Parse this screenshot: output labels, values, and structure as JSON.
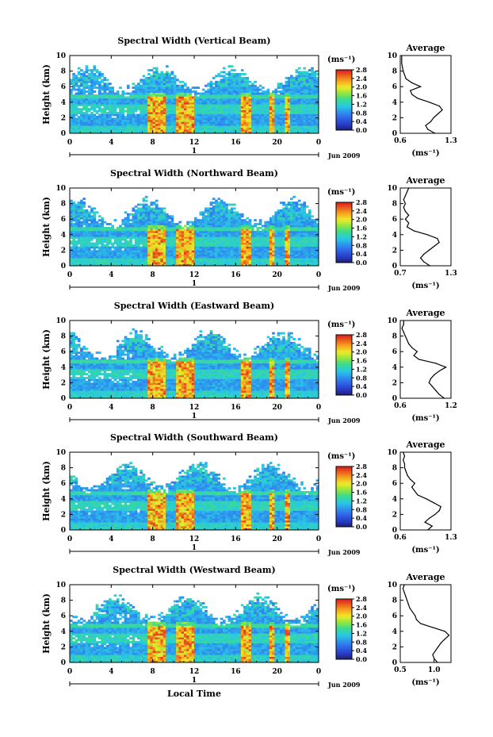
{
  "figure": {
    "xlabel": "Local Time"
  },
  "chart_data": [
    {
      "type": "heatmap",
      "title": "Spectral Width (Vertical Beam)",
      "ylabel": "Height (km)",
      "xticks": [
        "0",
        "4",
        "8",
        "12",
        "16",
        "20",
        "0"
      ],
      "yticks": [
        "0",
        "2",
        "4",
        "6",
        "8",
        "10"
      ],
      "xlim": [
        0,
        24
      ],
      "ylim": [
        0,
        10
      ],
      "date_label": "Jun 2009",
      "day_marker": "1",
      "colorbar": {
        "unit": "(ms⁻¹)",
        "ticks": [
          "0.0",
          "0.4",
          "0.8",
          "1.2",
          "1.6",
          "2.0",
          "2.4",
          "2.8"
        ],
        "range": [
          0,
          2.8
        ]
      },
      "profile": {
        "title": "Average",
        "xlabel": "(ms⁻¹)",
        "xticks": [
          "0.6",
          "1.3"
        ],
        "xlim": [
          0.6,
          1.3
        ],
        "heights": [
          0,
          0.5,
          1,
          1.5,
          2,
          2.5,
          3,
          3.5,
          4,
          4.5,
          5,
          5.5,
          6,
          6.5,
          7,
          7.5,
          8,
          8.5,
          9,
          9.5,
          10
        ],
        "values": [
          1.08,
          0.98,
          0.95,
          1.02,
          1.06,
          1.12,
          1.18,
          1.14,
          1.0,
          0.84,
          0.76,
          0.74,
          0.88,
          0.76,
          0.68,
          0.66,
          0.64,
          0.63,
          0.62,
          0.62,
          0.62
        ]
      }
    },
    {
      "type": "heatmap",
      "title": "Spectral Width (Northward Beam)",
      "ylabel": "Height (km)",
      "xticks": [
        "0",
        "4",
        "8",
        "12",
        "16",
        "20",
        "0"
      ],
      "yticks": [
        "0",
        "2",
        "4",
        "6",
        "8",
        "10"
      ],
      "xlim": [
        0,
        24
      ],
      "ylim": [
        0,
        10
      ],
      "date_label": "Jun 2009",
      "day_marker": "1",
      "colorbar": {
        "unit": "(ms⁻¹)",
        "ticks": [
          "0.0",
          "0.4",
          "0.8",
          "1.2",
          "1.6",
          "2.0",
          "2.4",
          "2.8"
        ],
        "range": [
          0,
          2.8
        ]
      },
      "profile": {
        "title": "Average",
        "xlabel": "(ms⁻¹)",
        "xticks": [
          "0.7",
          "1.3"
        ],
        "xlim": [
          0.7,
          1.3
        ],
        "heights": [
          0,
          0.5,
          1,
          1.5,
          2,
          2.5,
          3,
          3.5,
          4,
          4.5,
          5,
          5.5,
          6,
          6.5,
          7,
          7.5,
          8,
          8.5,
          9,
          9.5,
          10
        ],
        "values": [
          1.05,
          0.98,
          0.94,
          0.98,
          1.04,
          1.1,
          1.16,
          1.14,
          1.02,
          0.86,
          0.78,
          0.8,
          0.76,
          0.8,
          0.76,
          0.74,
          0.76,
          0.74,
          0.76,
          0.78,
          0.8
        ]
      }
    },
    {
      "type": "heatmap",
      "title": "Spectral Width (Eastward Beam)",
      "ylabel": "Height (km)",
      "xticks": [
        "0",
        "4",
        "8",
        "12",
        "16",
        "20",
        "0"
      ],
      "yticks": [
        "0",
        "2",
        "4",
        "6",
        "8",
        "10"
      ],
      "xlim": [
        0,
        24
      ],
      "ylim": [
        0,
        10
      ],
      "date_label": "Jun 2009",
      "day_marker": "1",
      "colorbar": {
        "unit": "(ms⁻¹)",
        "ticks": [
          "0.0",
          "0.4",
          "0.8",
          "1.2",
          "1.6",
          "2.0",
          "2.4",
          "2.8"
        ],
        "range": [
          0,
          2.8
        ]
      },
      "profile": {
        "title": "Average",
        "xlabel": "(ms⁻¹)",
        "xticks": [
          "0.6",
          "1.2"
        ],
        "xlim": [
          0.6,
          1.2
        ],
        "heights": [
          0,
          0.5,
          1,
          1.5,
          2,
          2.5,
          3,
          3.5,
          4,
          4.5,
          5,
          5.5,
          6,
          6.5,
          7,
          7.5,
          8,
          8.5,
          9,
          9.5,
          10
        ],
        "values": [
          1.12,
          1.06,
          1.02,
          0.98,
          0.94,
          0.96,
          1.0,
          1.06,
          1.14,
          1.02,
          0.82,
          0.76,
          0.8,
          0.74,
          0.7,
          0.68,
          0.66,
          0.64,
          0.62,
          0.64,
          0.64
        ]
      }
    },
    {
      "type": "heatmap",
      "title": "Spectral Width (Southward Beam)",
      "ylabel": "Height (km)",
      "xticks": [
        "0",
        "4",
        "8",
        "12",
        "16",
        "20",
        "0"
      ],
      "yticks": [
        "0",
        "2",
        "4",
        "6",
        "8",
        "10"
      ],
      "xlim": [
        0,
        24
      ],
      "ylim": [
        0,
        10
      ],
      "date_label": "Jun 2009",
      "day_marker": "1",
      "colorbar": {
        "unit": "(ms⁻¹)",
        "ticks": [
          "0.0",
          "0.4",
          "0.8",
          "1.2",
          "1.6",
          "2.0",
          "2.4",
          "2.8"
        ],
        "range": [
          0,
          2.8
        ]
      },
      "profile": {
        "title": "Average",
        "xlabel": "(ms⁻¹)",
        "xticks": [
          "0.6",
          "1.3"
        ],
        "xlim": [
          0.6,
          1.3
        ],
        "heights": [
          0,
          0.5,
          1,
          1.5,
          2,
          2.5,
          3,
          3.5,
          4,
          4.5,
          5,
          5.5,
          6,
          6.5,
          7,
          7.5,
          8,
          8.5,
          9,
          9.5,
          10
        ],
        "values": [
          0.98,
          1.04,
          0.94,
          1.0,
          1.08,
          1.14,
          1.16,
          1.06,
          0.96,
          0.84,
          0.8,
          0.76,
          0.8,
          0.74,
          0.7,
          0.68,
          0.66,
          0.66,
          0.64,
          0.66,
          0.64
        ]
      }
    },
    {
      "type": "heatmap",
      "title": "Spectral Width (Westward Beam)",
      "ylabel": "Height (km)",
      "xticks": [
        "0",
        "4",
        "8",
        "12",
        "16",
        "20",
        "0"
      ],
      "yticks": [
        "0",
        "2",
        "4",
        "6",
        "8",
        "10"
      ],
      "xlim": [
        0,
        24
      ],
      "ylim": [
        0,
        10
      ],
      "date_label": "Jun 2009",
      "day_marker": "1",
      "colorbar": {
        "unit": "(ms⁻¹)",
        "ticks": [
          "0.0",
          "0.4",
          "0.8",
          "1.2",
          "1.6",
          "2.0",
          "2.4",
          "2.8"
        ],
        "range": [
          0,
          2.8
        ]
      },
      "profile": {
        "title": "Average",
        "xlabel": "(ms⁻¹)",
        "xticks": [
          "0.5",
          "1.0"
        ],
        "xlim": [
          0.5,
          1.25
        ],
        "heights": [
          0,
          0.5,
          1,
          1.5,
          2,
          2.5,
          3,
          3.5,
          4,
          4.5,
          5,
          5.5,
          6,
          6.5,
          7,
          7.5,
          8,
          8.5,
          9,
          9.5,
          10
        ],
        "values": [
          1.05,
          1.0,
          0.98,
          1.02,
          1.06,
          1.1,
          1.16,
          1.22,
          1.16,
          0.98,
          0.8,
          0.74,
          0.72,
          0.68,
          0.64,
          0.62,
          0.6,
          0.58,
          0.56,
          0.54,
          0.56
        ]
      }
    }
  ]
}
